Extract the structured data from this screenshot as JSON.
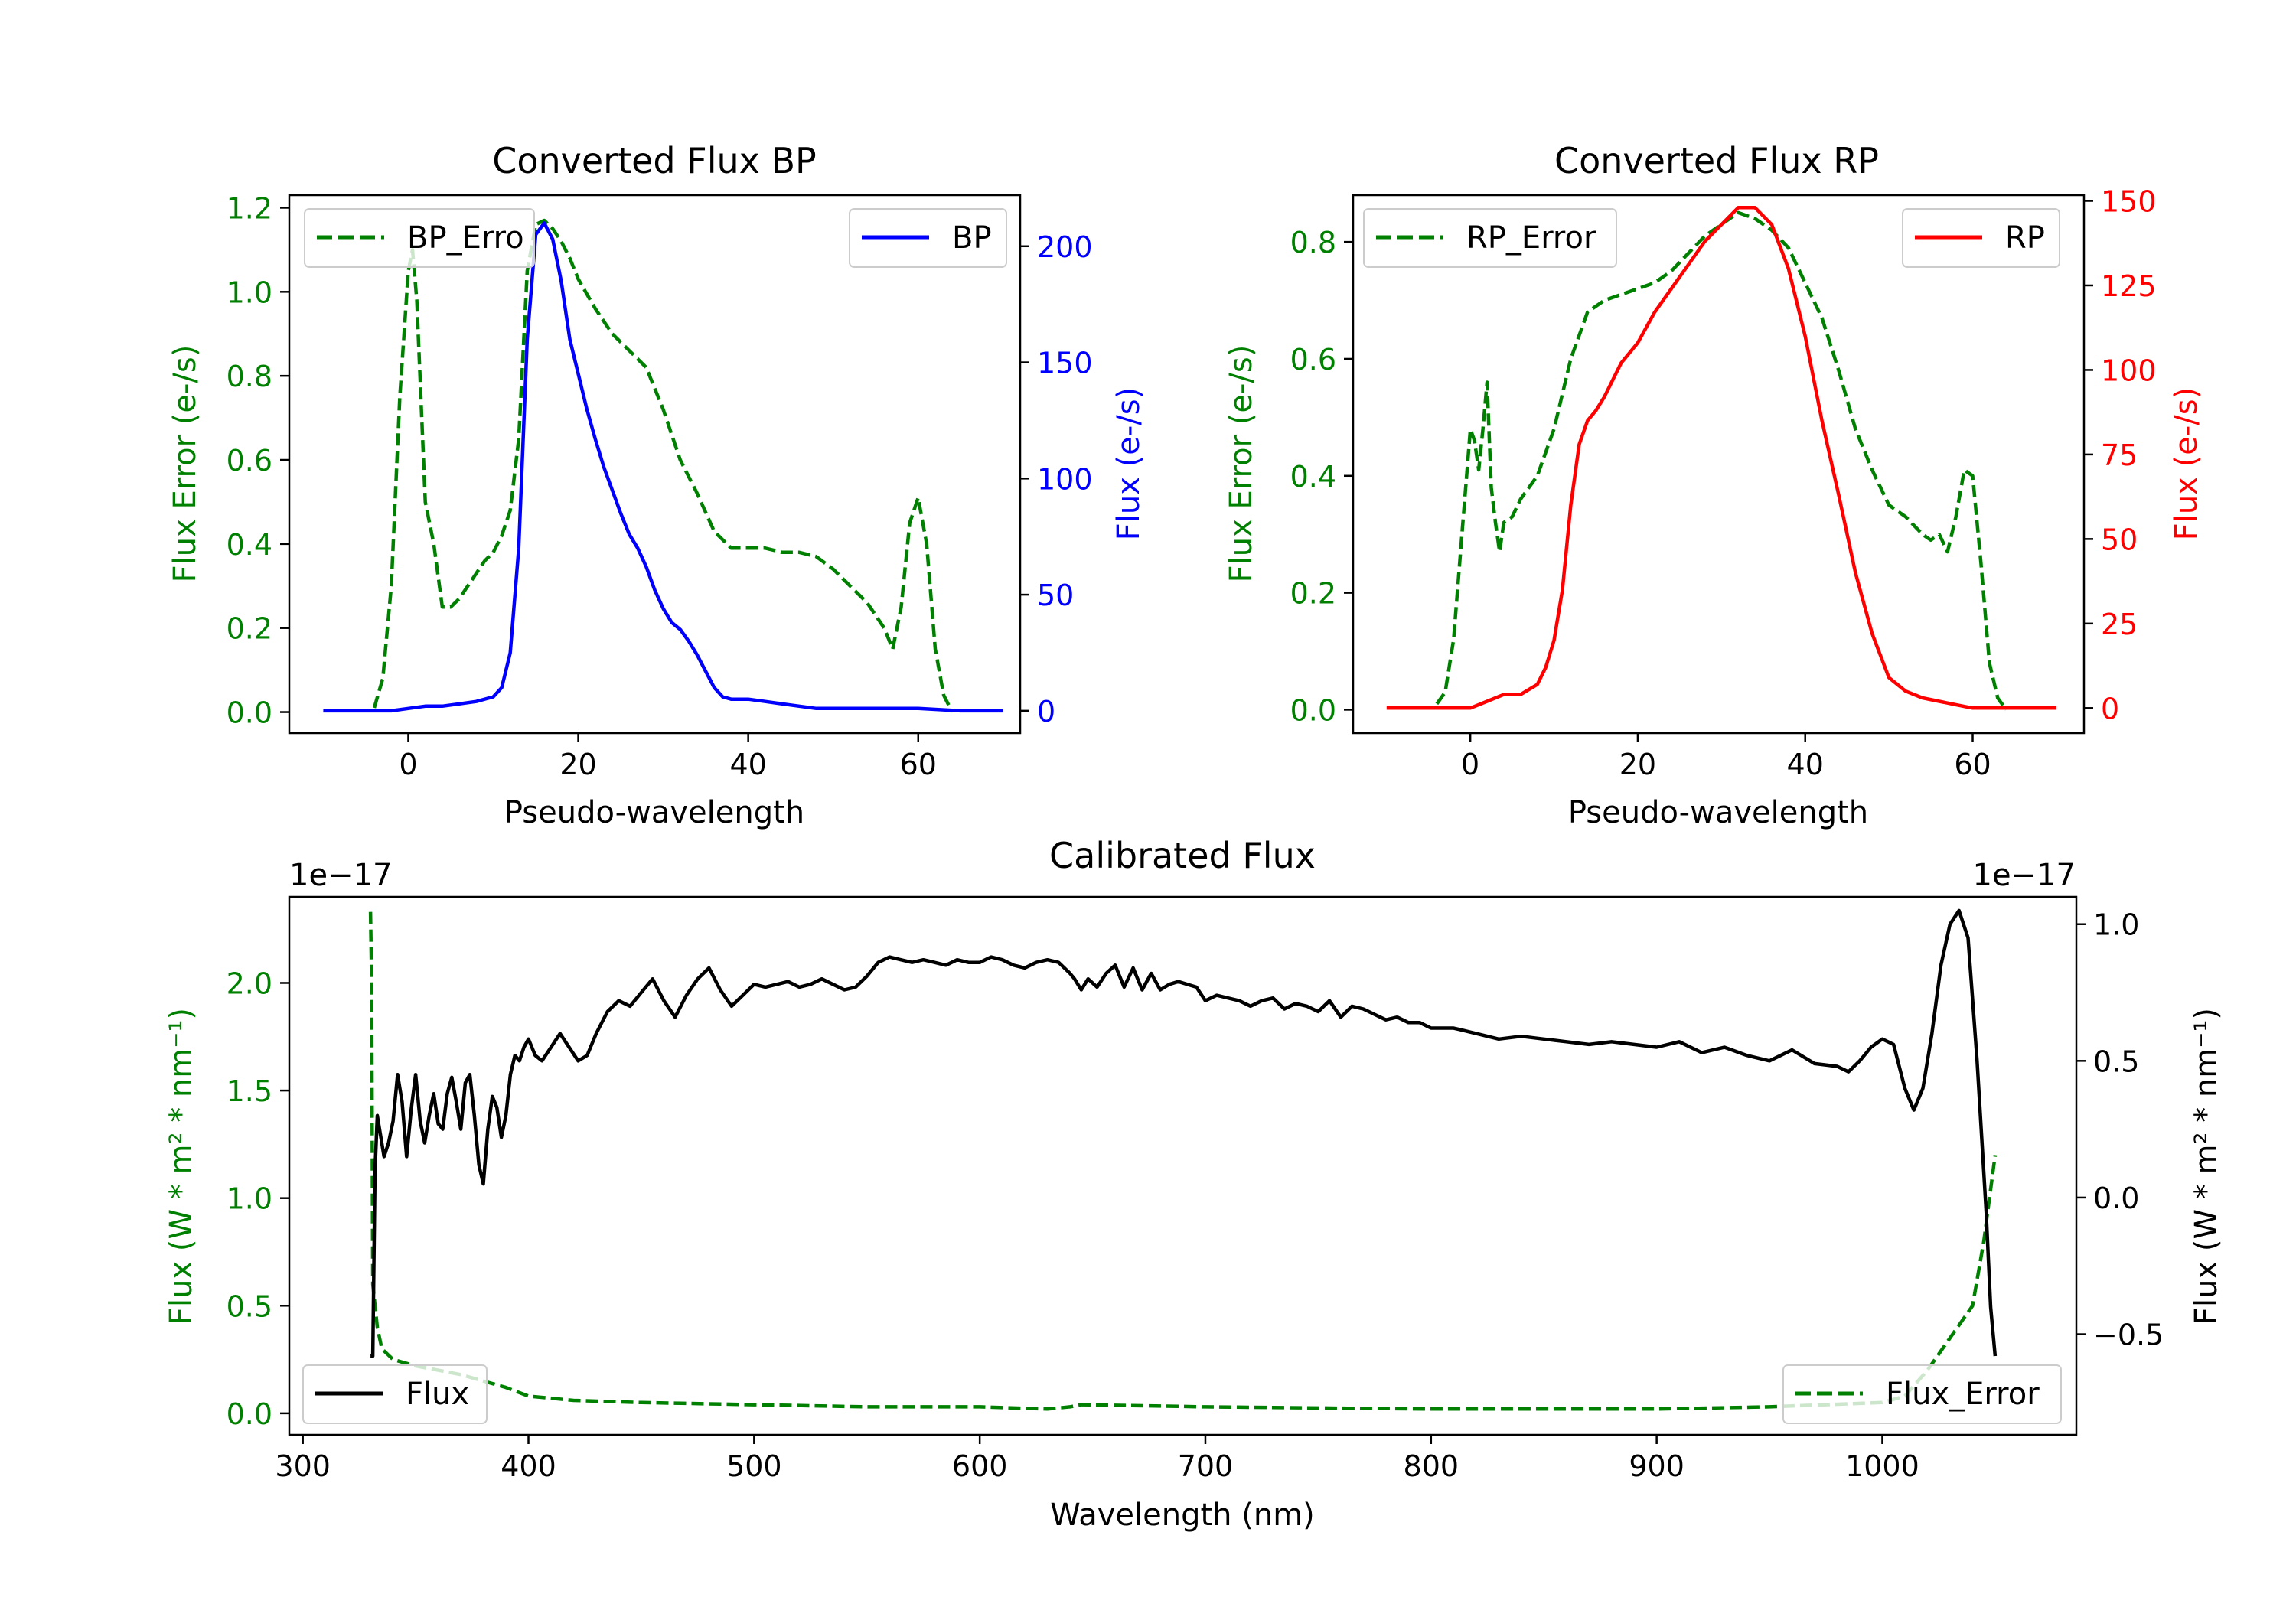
{
  "colors": {
    "error": "#008000",
    "bp": "#0000ff",
    "rp": "#ff0000",
    "flux": "#000000",
    "axis": "#000000"
  },
  "chart_data": [
    {
      "id": "bp",
      "type": "line",
      "title": "Converted Flux BP",
      "xlabel": "Pseudo-wavelength",
      "ylabel_left": "Flux Error (e-/s)",
      "ylabel_right": "Flux (e-/s)",
      "xlim": [
        -14,
        72
      ],
      "ylim_left": [
        -0.05,
        1.23
      ],
      "ylim_right": [
        -9.6,
        222
      ],
      "xticks": [
        0,
        20,
        40,
        60
      ],
      "yticks_left": [
        0.0,
        0.2,
        0.4,
        0.6,
        0.8,
        1.0,
        1.2
      ],
      "yticks_left_labels": [
        "0.0",
        "0.2",
        "0.4",
        "0.6",
        "0.8",
        "1.0",
        "1.2"
      ],
      "yticks_right": [
        0,
        50,
        100,
        150,
        200
      ],
      "yticks_right_labels": [
        "0",
        "50",
        "100",
        "150",
        "200"
      ],
      "series": [
        {
          "name": "BP_Error",
          "axis": "left",
          "style": "dashed",
          "color": "error",
          "legend": "BP_Erro",
          "x": [
            -4,
            -3,
            -2,
            -1,
            0,
            0.5,
            1,
            2,
            3,
            4,
            5,
            6,
            7,
            8,
            9,
            10,
            11,
            12,
            13,
            14,
            15,
            16,
            17,
            18,
            19,
            20,
            22,
            24,
            26,
            28,
            30,
            32,
            34,
            36,
            38,
            40,
            42,
            44,
            46,
            48,
            50,
            52,
            54,
            56,
            57,
            58,
            59,
            60,
            61,
            62,
            63,
            64
          ],
          "y": [
            0.01,
            0.08,
            0.3,
            0.75,
            1.05,
            1.1,
            0.98,
            0.5,
            0.4,
            0.25,
            0.25,
            0.27,
            0.3,
            0.33,
            0.36,
            0.38,
            0.42,
            0.48,
            0.65,
            1.05,
            1.16,
            1.17,
            1.15,
            1.12,
            1.08,
            1.03,
            0.96,
            0.9,
            0.86,
            0.82,
            0.72,
            0.6,
            0.52,
            0.43,
            0.39,
            0.39,
            0.39,
            0.38,
            0.38,
            0.37,
            0.34,
            0.3,
            0.26,
            0.2,
            0.15,
            0.25,
            0.45,
            0.51,
            0.4,
            0.15,
            0.04,
            0.0
          ]
        },
        {
          "name": "BP",
          "axis": "right",
          "style": "solid",
          "color": "bp",
          "legend": "BP",
          "x": [
            -10,
            -4,
            -2,
            0,
            2,
            4,
            6,
            8,
            10,
            11,
            12,
            13,
            14,
            15,
            16,
            17,
            18,
            19,
            20,
            21,
            22,
            23,
            24,
            25,
            26,
            27,
            28,
            29,
            30,
            31,
            32,
            33,
            34,
            35,
            36,
            37,
            38,
            40,
            42,
            44,
            46,
            48,
            50,
            55,
            60,
            65,
            70
          ],
          "y": [
            0,
            0,
            0,
            1,
            2,
            2,
            3,
            4,
            6,
            10,
            25,
            70,
            160,
            205,
            210,
            203,
            185,
            160,
            145,
            130,
            117,
            105,
            95,
            85,
            76,
            70,
            62,
            52,
            44,
            38,
            35,
            30,
            24,
            17,
            10,
            6,
            5,
            5,
            4,
            3,
            2,
            1,
            1,
            1,
            1,
            0,
            0
          ]
        }
      ]
    },
    {
      "id": "rp",
      "type": "line",
      "title": "Converted Flux RP",
      "xlabel": "Pseudo-wavelength",
      "ylabel_left": "Flux Error (e-/s)",
      "ylabel_right": "Flux (e-/s)",
      "xlim": [
        -14,
        73.3
      ],
      "ylim_left": [
        -0.04,
        0.88
      ],
      "ylim_right": [
        -7.4,
        151.7
      ],
      "xticks": [
        0,
        20,
        40,
        60
      ],
      "yticks_left": [
        0.0,
        0.2,
        0.4,
        0.6,
        0.8
      ],
      "yticks_left_labels": [
        "0.0",
        "0.2",
        "0.4",
        "0.6",
        "0.8"
      ],
      "yticks_right": [
        0,
        25,
        50,
        75,
        100,
        125,
        150
      ],
      "yticks_right_labels": [
        "0",
        "25",
        "50",
        "75",
        "100",
        "125",
        "150"
      ],
      "series": [
        {
          "name": "RP_Error",
          "axis": "left",
          "style": "dashed",
          "color": "error",
          "legend": "RP_Error",
          "x": [
            -4,
            -3,
            -2,
            -1,
            0,
            0.5,
            1,
            1.5,
            2,
            2.5,
            3,
            3.5,
            4,
            5,
            6,
            8,
            10,
            12,
            14,
            16,
            18,
            20,
            22,
            24,
            26,
            28,
            30,
            32,
            34,
            36,
            38,
            40,
            42,
            44,
            46,
            48,
            50,
            52,
            54,
            55,
            56,
            57,
            58,
            59,
            60,
            61,
            62,
            63,
            64
          ],
          "y": [
            0.01,
            0.03,
            0.12,
            0.3,
            0.48,
            0.46,
            0.41,
            0.48,
            0.56,
            0.38,
            0.32,
            0.27,
            0.32,
            0.33,
            0.36,
            0.4,
            0.48,
            0.6,
            0.68,
            0.7,
            0.71,
            0.72,
            0.73,
            0.75,
            0.78,
            0.81,
            0.83,
            0.85,
            0.84,
            0.82,
            0.79,
            0.73,
            0.67,
            0.58,
            0.48,
            0.41,
            0.35,
            0.33,
            0.3,
            0.29,
            0.3,
            0.27,
            0.33,
            0.41,
            0.4,
            0.25,
            0.08,
            0.02,
            0.0
          ]
        },
        {
          "name": "RP",
          "axis": "right",
          "style": "solid",
          "color": "rp",
          "legend": "RP",
          "x": [
            -10,
            -2,
            0,
            2,
            4,
            6,
            8,
            9,
            10,
            11,
            12,
            13,
            14,
            15,
            16,
            18,
            20,
            22,
            24,
            26,
            28,
            30,
            32,
            34,
            36,
            38,
            40,
            42,
            44,
            46,
            48,
            50,
            52,
            54,
            56,
            58,
            60,
            62,
            65,
            70
          ],
          "y": [
            0,
            0,
            0,
            2,
            4,
            4,
            7,
            12,
            20,
            35,
            60,
            78,
            85,
            88,
            92,
            102,
            108,
            117,
            124,
            131,
            138,
            143,
            148,
            148,
            143,
            130,
            110,
            85,
            63,
            40,
            22,
            9,
            5,
            3,
            2,
            1,
            0,
            0,
            0,
            0
          ]
        }
      ]
    },
    {
      "id": "cal",
      "type": "line",
      "title": "Calibrated Flux",
      "xlabel": "Wavelength (nm)",
      "ylabel_left": "Flux (W * m² * nm⁻¹)",
      "ylabel_right": "Flux (W * m² * nm⁻¹)",
      "offset_left": "1e−17",
      "offset_right": "1e−17",
      "xlim": [
        294,
        1086
      ],
      "ylim_left": [
        -0.1,
        2.4
      ],
      "ylim_right": [
        -0.868,
        1.1
      ],
      "xticks": [
        300,
        400,
        500,
        600,
        700,
        800,
        900,
        1000
      ],
      "yticks_left": [
        0.0,
        0.5,
        1.0,
        1.5,
        2.0
      ],
      "yticks_left_labels": [
        "0.0",
        "0.5",
        "1.0",
        "1.5",
        "2.0"
      ],
      "yticks_right": [
        -0.5,
        0.0,
        0.5,
        1.0
      ],
      "yticks_right_labels": [
        "−0.5",
        "0.0",
        "0.5",
        "1.0"
      ],
      "series": [
        {
          "name": "Flux_Error",
          "axis": "left",
          "style": "dashed",
          "color": "error",
          "legend": "Flux_Error",
          "x": [
            330,
            330.5,
            331,
            333,
            335,
            340,
            350,
            360,
            370,
            380,
            390,
            400,
            420,
            450,
            500,
            550,
            600,
            630,
            640,
            645,
            700,
            800,
            900,
            950,
            1000,
            1010,
            1020,
            1030,
            1040,
            1045,
            1050
          ],
          "y": [
            2.33,
            2.0,
            0.6,
            0.4,
            0.3,
            0.25,
            0.22,
            0.2,
            0.18,
            0.15,
            0.12,
            0.08,
            0.06,
            0.05,
            0.04,
            0.03,
            0.03,
            0.02,
            0.03,
            0.04,
            0.03,
            0.02,
            0.02,
            0.03,
            0.05,
            0.08,
            0.2,
            0.35,
            0.5,
            0.8,
            1.2
          ]
        },
        {
          "name": "Flux",
          "axis": "right",
          "style": "solid",
          "color": "flux",
          "legend": "Flux",
          "x": [
            330,
            331,
            332,
            333,
            334,
            336,
            338,
            340,
            342,
            344,
            346,
            348,
            350,
            352,
            354,
            356,
            358,
            360,
            362,
            364,
            366,
            368,
            370,
            372,
            374,
            376,
            378,
            380,
            382,
            384,
            386,
            388,
            390,
            392,
            394,
            396,
            398,
            400,
            403,
            406,
            410,
            414,
            418,
            422,
            426,
            430,
            435,
            440,
            445,
            450,
            455,
            460,
            465,
            470,
            475,
            480,
            485,
            490,
            495,
            500,
            505,
            510,
            515,
            520,
            525,
            530,
            535,
            540,
            545,
            550,
            555,
            560,
            565,
            570,
            575,
            580,
            585,
            590,
            595,
            600,
            605,
            610,
            615,
            620,
            625,
            630,
            635,
            640,
            642,
            645,
            648,
            652,
            656,
            660,
            664,
            668,
            672,
            676,
            680,
            684,
            688,
            692,
            696,
            700,
            705,
            710,
            715,
            720,
            725,
            730,
            735,
            740,
            745,
            750,
            755,
            760,
            765,
            770,
            775,
            780,
            785,
            790,
            795,
            800,
            810,
            820,
            830,
            840,
            850,
            860,
            870,
            880,
            890,
            900,
            910,
            920,
            930,
            940,
            950,
            960,
            970,
            980,
            985,
            990,
            995,
            1000,
            1005,
            1010,
            1014,
            1018,
            1022,
            1026,
            1030,
            1034,
            1038,
            1042,
            1046,
            1048,
            1050
          ],
          "y": [
            -0.58,
            -0.58,
            0.1,
            0.3,
            0.25,
            0.15,
            0.2,
            0.28,
            0.45,
            0.35,
            0.15,
            0.32,
            0.45,
            0.28,
            0.2,
            0.3,
            0.38,
            0.27,
            0.25,
            0.38,
            0.44,
            0.35,
            0.25,
            0.42,
            0.45,
            0.3,
            0.12,
            0.05,
            0.25,
            0.37,
            0.33,
            0.22,
            0.3,
            0.45,
            0.52,
            0.5,
            0.55,
            0.58,
            0.52,
            0.5,
            0.55,
            0.6,
            0.55,
            0.5,
            0.52,
            0.6,
            0.68,
            0.72,
            0.7,
            0.75,
            0.8,
            0.72,
            0.66,
            0.74,
            0.8,
            0.84,
            0.76,
            0.7,
            0.74,
            0.78,
            0.77,
            0.78,
            0.79,
            0.77,
            0.78,
            0.8,
            0.78,
            0.76,
            0.77,
            0.81,
            0.86,
            0.88,
            0.87,
            0.86,
            0.87,
            0.86,
            0.85,
            0.87,
            0.86,
            0.86,
            0.88,
            0.87,
            0.85,
            0.84,
            0.86,
            0.87,
            0.86,
            0.82,
            0.8,
            0.76,
            0.8,
            0.77,
            0.82,
            0.85,
            0.77,
            0.84,
            0.76,
            0.82,
            0.76,
            0.78,
            0.79,
            0.78,
            0.77,
            0.72,
            0.74,
            0.73,
            0.72,
            0.7,
            0.72,
            0.73,
            0.69,
            0.71,
            0.7,
            0.68,
            0.72,
            0.66,
            0.7,
            0.69,
            0.67,
            0.65,
            0.66,
            0.64,
            0.64,
            0.62,
            0.62,
            0.6,
            0.58,
            0.59,
            0.58,
            0.57,
            0.56,
            0.57,
            0.56,
            0.55,
            0.57,
            0.53,
            0.55,
            0.52,
            0.5,
            0.54,
            0.49,
            0.48,
            0.46,
            0.5,
            0.55,
            0.58,
            0.56,
            0.4,
            0.32,
            0.4,
            0.6,
            0.85,
            1.0,
            1.05,
            0.95,
            0.5,
            -0.05,
            -0.4,
            -0.58
          ]
        }
      ]
    }
  ]
}
